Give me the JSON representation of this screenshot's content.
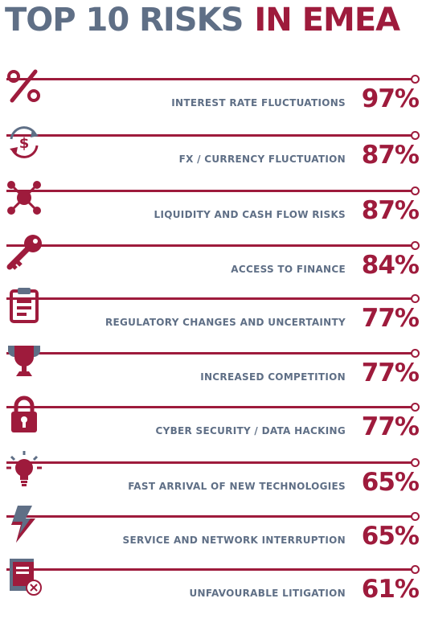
{
  "title": {
    "part1": "TOP 10 RISKS",
    "part2": "IN EMEA"
  },
  "colors": {
    "accent": "#9e1b3c",
    "slate": "#5f6f86"
  },
  "chart_data": {
    "type": "table",
    "title": "TOP 10 RISKS IN EMEA",
    "categories": [
      "INTEREST RATE FLUCTUATIONS",
      "FX / CURRENCY FLUCTUATION",
      "LIQUIDITY AND CASH FLOW RISKS",
      "ACCESS TO FINANCE",
      "REGULATORY CHANGES AND UNCERTAINTY",
      "INCREASED COMPETITION",
      "CYBER SECURITY / DATA HACKING",
      "FAST ARRIVAL OF NEW TECHNOLOGIES",
      "SERVICE AND NETWORK INTERRUPTION",
      "UNFAVOURABLE LITIGATION"
    ],
    "values": [
      97,
      87,
      87,
      84,
      77,
      77,
      77,
      65,
      65,
      61
    ],
    "value_labels": [
      "97%",
      "87%",
      "87%",
      "84%",
      "77%",
      "77%",
      "77%",
      "65%",
      "65%",
      "61%"
    ],
    "icons": [
      "percent-icon",
      "currency-exchange-icon",
      "network-nodes-icon",
      "key-icon",
      "clipboard-icon",
      "trophy-icon",
      "padlock-icon",
      "lightbulb-icon",
      "lightning-icon",
      "book-icon"
    ]
  }
}
